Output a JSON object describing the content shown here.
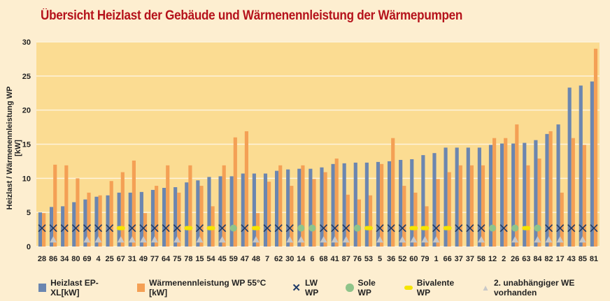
{
  "chart_data": {
    "type": "bar",
    "title": "Übersicht Heizlast der Gebäude und Wärmenennleistung der Wärmepumpen",
    "ylabel": "Heizlast / Wärmenennleistung WP [kW]",
    "xlabel": "",
    "ylim": [
      0,
      30
    ],
    "yticks": [
      0,
      5,
      10,
      15,
      20,
      25,
      30
    ],
    "grid": true,
    "legend_placement": "bottom",
    "colors": {
      "heizlast": "#6b86b0",
      "wp": "#f4a055",
      "lw": "#1f3a66",
      "sole": "#8fc48a",
      "bivalent": "#f5e400",
      "we": "#c8c8c8"
    },
    "categories": [
      "28",
      "86",
      "34",
      "80",
      "69",
      "4",
      "25",
      "67",
      "31",
      "49",
      "77",
      "64",
      "75",
      "78",
      "15",
      "54",
      "45",
      "59",
      "47",
      "48",
      "7",
      "62",
      "30",
      "14",
      "6",
      "68",
      "41",
      "87",
      "76",
      "53",
      "5",
      "36",
      "52",
      "60",
      "79",
      "1",
      "66",
      "37",
      "37",
      "58",
      "12",
      "2",
      "26",
      "63",
      "84",
      "82",
      "17",
      "43",
      "85",
      "81"
    ],
    "series": [
      {
        "name": "Heizlast EP-XL[kW]",
        "values": [
          5.0,
          5.8,
          5.9,
          6.5,
          6.9,
          7.3,
          7.5,
          7.9,
          7.9,
          8.0,
          8.3,
          8.6,
          8.7,
          9.4,
          9.7,
          10.2,
          10.3,
          10.3,
          10.7,
          10.7,
          10.7,
          11.1,
          11.3,
          11.4,
          11.4,
          11.6,
          12.1,
          12.2,
          12.3,
          12.3,
          12.4,
          12.5,
          12.7,
          12.8,
          13.4,
          13.7,
          14.5,
          14.5,
          14.5,
          14.5,
          14.9,
          15.1,
          15.1,
          15.2,
          15.6,
          16.5,
          17.9,
          23.3,
          23.6,
          24.2
        ]
      },
      {
        "name": "Wärmenennleistung WP 55°C [kW]",
        "values": [
          4.9,
          12,
          11.9,
          10,
          7.9,
          7.5,
          9.6,
          10.9,
          12.6,
          4.9,
          8.9,
          11.9,
          7.9,
          11.9,
          8.9,
          5.9,
          11.9,
          16,
          16.9,
          4.9,
          9.5,
          11.9,
          8.9,
          11.9,
          9.9,
          10.9,
          12.9,
          7.6,
          6.9,
          7.5,
          12.1,
          15.9,
          8.9,
          7.9,
          5.9,
          9.9,
          10.9,
          11.9,
          11.9,
          11.9,
          15.9,
          15.9,
          17.9,
          11.9,
          12.9,
          16.9,
          7.9,
          15.9,
          14.9,
          29
        ]
      }
    ],
    "wp_type": [
      "LW",
      "LW",
      "LW",
      "LW",
      "LW",
      "LW",
      "LW",
      "Bivalent",
      "LW",
      "LW",
      "LW",
      "LW",
      "LW",
      "Bivalent",
      "LW",
      "Bivalent",
      "LW",
      "Sole",
      "LW",
      "Bivalent",
      "LW",
      "LW",
      "LW",
      "Sole",
      "Sole",
      "LW",
      "LW",
      "LW",
      "Sole",
      "Bivalent",
      "LW",
      "LW",
      "LW",
      "Bivalent",
      "Bivalent",
      "LW",
      "Bivalent",
      "LW",
      "LW",
      "LW",
      "Sole",
      "LW",
      "Sole",
      "Bivalent",
      "Sole",
      "LW",
      "LW",
      "LW",
      "LW",
      "LW"
    ],
    "second_we": [
      false,
      true,
      false,
      false,
      true,
      true,
      false,
      true,
      true,
      true,
      true,
      false,
      true,
      false,
      true,
      false,
      true,
      false,
      false,
      true,
      false,
      false,
      true,
      true,
      false,
      true,
      true,
      true,
      false,
      false,
      true,
      false,
      true,
      true,
      true,
      true,
      false,
      false,
      false,
      true,
      false,
      false,
      true,
      false,
      true,
      true,
      true,
      false,
      true,
      false
    ],
    "legend": [
      "Heizlast EP-XL[kW]",
      "Wärmenennleistung WP 55°C [kW]",
      "LW WP",
      "Sole WP",
      "Bivalente WP",
      "2. unabhängiger WE vorhanden"
    ]
  }
}
